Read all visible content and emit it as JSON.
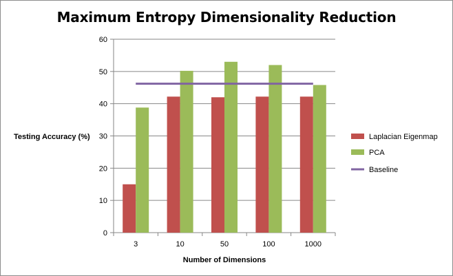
{
  "chart_data": {
    "type": "bar",
    "title": "Maximum Entropy Dimensionality Reduction",
    "xlabel": "Number of Dimensions",
    "ylabel": "Testing Accuracy  (%)",
    "categories": [
      "3",
      "10",
      "50",
      "100",
      "1000"
    ],
    "ylim": [
      0,
      60
    ],
    "yticks": [
      0,
      10,
      20,
      30,
      40,
      50,
      60
    ],
    "grid": true,
    "legend_position": "right",
    "series": [
      {
        "name": "Laplacian Eigenmap",
        "type": "bar",
        "color": "#c0504d",
        "values": [
          15,
          42.2,
          42,
          42.2,
          42.2
        ]
      },
      {
        "name": "PCA",
        "type": "bar",
        "color": "#9bbb59",
        "values": [
          38.8,
          50.2,
          53,
          52,
          45.8
        ]
      },
      {
        "name": "Baseline",
        "type": "line",
        "color": "#8064a2",
        "values": [
          46.2,
          46.2,
          46.2,
          46.2,
          46.2
        ]
      }
    ]
  }
}
